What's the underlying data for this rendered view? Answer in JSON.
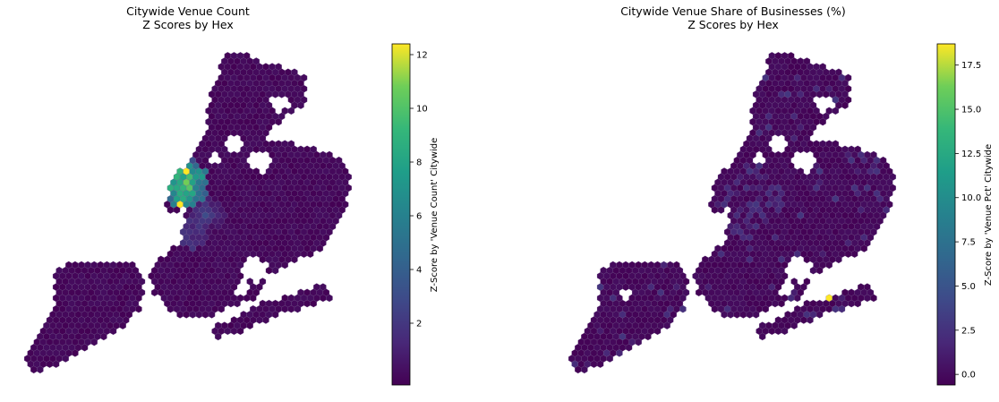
{
  "chart_data": [
    {
      "type": "heatmap",
      "title": "Citywide Venue Count",
      "subtitle": "Z Scores by Hex",
      "colorbar_label": "Z-Score by 'Venue Count' Citywide",
      "colormap": "viridis",
      "color_range": [
        -0.3,
        12.4
      ],
      "colorbar_ticks": [
        2,
        4,
        6,
        8,
        10,
        12
      ],
      "colorbar_tick_labels": [
        "2",
        "4",
        "6",
        "8",
        "10",
        "12"
      ],
      "axes_visible": false
    },
    {
      "type": "heatmap",
      "title": "Citywide Venue Share of Businesses (%)",
      "subtitle": "Z Scores by Hex",
      "colorbar_label": "Z-Score by 'Venue Pct' Citywide",
      "colormap": "viridis",
      "color_range": [
        -0.6,
        18.7
      ],
      "colorbar_ticks": [
        0,
        2.5,
        5,
        7.5,
        10,
        12.5,
        15,
        17.5
      ],
      "colorbar_tick_labels": [
        "0.0",
        "2.5",
        "5.0",
        "7.5",
        "10.0",
        "12.5",
        "15.0",
        "17.5"
      ],
      "axes_visible": false
    }
  ],
  "colors": {
    "background": "#ffffff",
    "hex_edge": "#6e5a8a",
    "viridis_low": "#440154",
    "viridis_high": "#fde725"
  }
}
